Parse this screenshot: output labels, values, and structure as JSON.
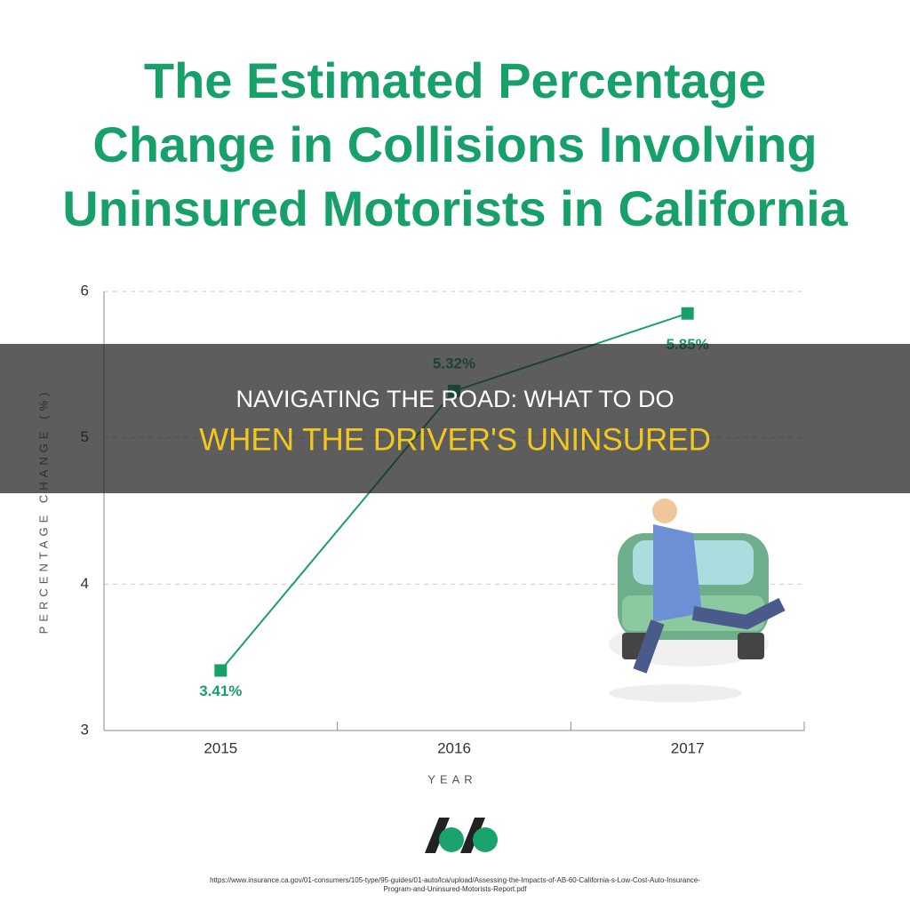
{
  "chart_data": {
    "type": "line",
    "title": [
      "The Estimated Percentage",
      "Change in Collisions Involving",
      "Uninsured Motorists in California"
    ],
    "categories": [
      "2015",
      "2016",
      "2017"
    ],
    "series": [
      {
        "name": "Percentage change",
        "color": "#17a06a",
        "values": [
          3.41,
          5.32,
          5.85
        ],
        "value_labels": [
          "3.41%",
          "5.32%",
          "5.85%"
        ]
      }
    ],
    "ylim": [
      3,
      6
    ],
    "yticks": [
      3,
      4,
      5,
      6
    ],
    "grid": true,
    "ylabel": "PERCENTAGE CHANGE (%)",
    "xlabel": "YEAR"
  },
  "overlay": {
    "line1": "NAVIGATING THE ROAD: WHAT TO DO",
    "line2": "WHEN THE DRIVER'S UNINSURED"
  },
  "source": [
    "https://www.insurance.ca.gov/01-consumers/105-type/95-guides/01-auto/lca/upload/Assessing-the-Impacts-of-AB-60-California-s-Low-Cost-Auto-Insurance-",
    "Program-and-Uninsured-Motorists-Report.pdf"
  ]
}
